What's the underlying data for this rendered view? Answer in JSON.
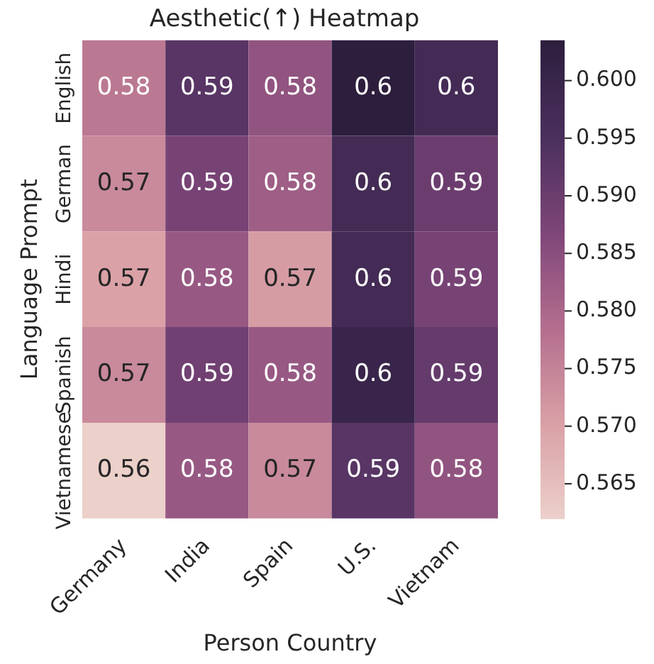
{
  "chart_data": {
    "type": "heatmap",
    "title": "Aesthetic(↑) Heatmap",
    "xlabel": "Person Country",
    "ylabel": "Language Prompt",
    "categories": [
      "Germany",
      "India",
      "Spain",
      "U.S.",
      "Vietnam"
    ],
    "y_categories": [
      "English",
      "German",
      "Hindi",
      "Spanish",
      "Vietnamese"
    ],
    "cells": [
      [
        0.577,
        0.593,
        0.584,
        0.6035,
        0.597
      ],
      [
        0.574,
        0.588,
        0.582,
        0.597,
        0.59
      ],
      [
        0.57,
        0.583,
        0.571,
        0.597,
        0.588
      ],
      [
        0.574,
        0.589,
        0.583,
        0.6,
        0.591
      ],
      [
        0.562,
        0.583,
        0.574,
        0.593,
        0.584
      ]
    ],
    "cell_labels": [
      [
        "0.58",
        "0.59",
        "0.58",
        "0.6",
        "0.6"
      ],
      [
        "0.57",
        "0.59",
        "0.58",
        "0.6",
        "0.59"
      ],
      [
        "0.57",
        "0.58",
        "0.57",
        "0.6",
        "0.59"
      ],
      [
        "0.57",
        "0.59",
        "0.58",
        "0.6",
        "0.59"
      ],
      [
        "0.56",
        "0.58",
        "0.57",
        "0.59",
        "0.58"
      ]
    ],
    "clim": [
      0.562,
      0.6035
    ],
    "cticks": [
      {
        "value": 0.565,
        "label": "0.565"
      },
      {
        "value": 0.57,
        "label": "0.570"
      },
      {
        "value": 0.575,
        "label": "0.575"
      },
      {
        "value": 0.58,
        "label": "0.580"
      },
      {
        "value": 0.585,
        "label": "0.585"
      },
      {
        "value": 0.59,
        "label": "0.590"
      },
      {
        "value": 0.595,
        "label": "0.595"
      },
      {
        "value": 0.6,
        "label": "0.600"
      }
    ]
  }
}
